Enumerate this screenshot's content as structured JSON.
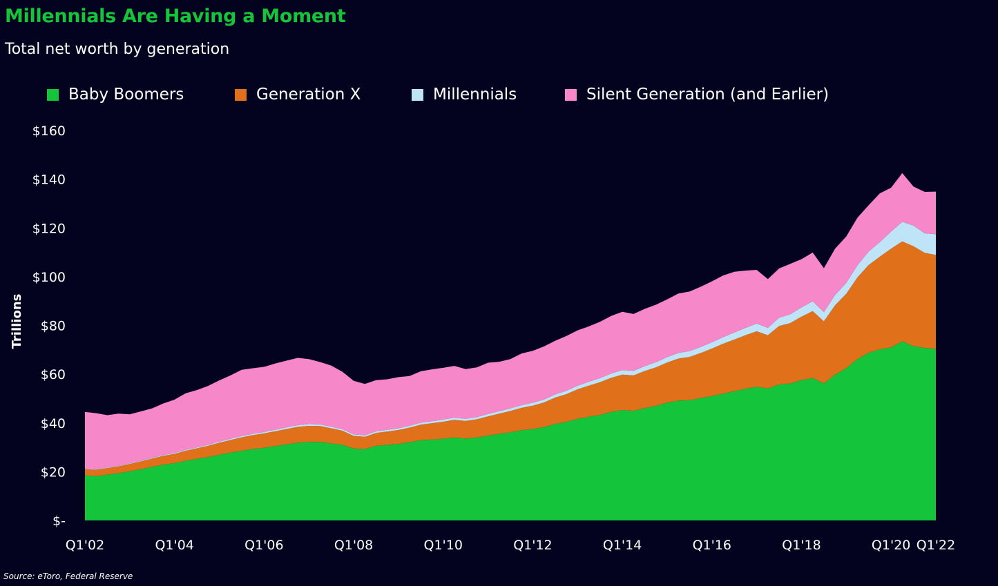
{
  "title": "Millennials Are Having a Moment",
  "subtitle": "Total net worth by generation",
  "source": "Source: eToro, Federal Reserve",
  "colors": {
    "background": "#03031f",
    "baby_boomers": "#14c43a",
    "generation_x": "#e0701a",
    "millennials": "#bfe4f8",
    "silent": "#f687c8"
  },
  "chart_data": {
    "type": "area",
    "stacked": true,
    "title": "Millennials Are Having a Moment",
    "subtitle": "Total net worth by generation",
    "ylabel": "Trillions",
    "xlabel": "",
    "ylim": [
      0,
      160
    ],
    "yticks": [
      0,
      20,
      40,
      60,
      80,
      100,
      120,
      140,
      160
    ],
    "ytick_labels": [
      "$-",
      "$20",
      "$40",
      "$60",
      "$80",
      "$100",
      "$120",
      "$140",
      "$160"
    ],
    "xtick_labels": [
      "Q1'02",
      "Q1'04",
      "Q1'06",
      "Q1'08",
      "Q1'10",
      "Q1'12",
      "Q1'14",
      "Q1'16",
      "Q1'18",
      "Q1'20",
      "Q1'22"
    ],
    "x_start": "Q1'02",
    "x_end": "Q3'22",
    "legend_position": "top",
    "series": [
      {
        "name": "Baby Boomers",
        "color": "#14c43a",
        "values": [
          18.5,
          18.2,
          18.8,
          19.4,
          20.2,
          21.0,
          22.0,
          22.9,
          23.5,
          24.5,
          25.3,
          26.0,
          27.0,
          27.8,
          28.6,
          29.3,
          29.8,
          30.5,
          31.2,
          31.9,
          32.2,
          32.2,
          31.6,
          31.0,
          29.5,
          29.3,
          30.6,
          31.0,
          31.4,
          32.1,
          32.9,
          33.2,
          33.5,
          34.0,
          33.6,
          34.0,
          34.8,
          35.5,
          36.2,
          37.0,
          37.5,
          38.3,
          39.6,
          40.4,
          41.7,
          42.5,
          43.3,
          44.5,
          45.3,
          45.0,
          46.1,
          47.0,
          48.3,
          49.2,
          49.3,
          50.2,
          51.0,
          52.0,
          53.0,
          54.0,
          54.8,
          54.2,
          55.8,
          56.2,
          57.6,
          58.4,
          56.2,
          59.8,
          62.5,
          66.2,
          68.8,
          70.2,
          71.0,
          73.5,
          71.5,
          70.8,
          70.4
        ]
      },
      {
        "name": "Generation X",
        "color": "#e0701a",
        "values": [
          2.5,
          2.6,
          2.7,
          2.8,
          3.0,
          3.2,
          3.4,
          3.6,
          3.8,
          4.1,
          4.3,
          4.6,
          4.9,
          5.2,
          5.5,
          5.7,
          5.9,
          6.1,
          6.3,
          6.5,
          6.6,
          6.5,
          6.2,
          5.8,
          5.2,
          5.0,
          5.3,
          5.5,
          5.7,
          6.0,
          6.4,
          6.7,
          7.0,
          7.3,
          7.2,
          7.5,
          7.9,
          8.3,
          8.7,
          9.2,
          9.6,
          10.1,
          10.8,
          11.4,
          12.1,
          12.8,
          13.4,
          14.0,
          14.5,
          14.5,
          15.2,
          15.8,
          16.5,
          17.2,
          17.8,
          18.5,
          19.5,
          20.5,
          21.2,
          22.0,
          22.8,
          21.8,
          24.0,
          24.8,
          26.0,
          27.5,
          25.5,
          28.5,
          30.5,
          33.5,
          36.0,
          38.0,
          40.5,
          41.0,
          41.0,
          39.0,
          38.5
        ]
      },
      {
        "name": "Millennials",
        "color": "#bfe4f8",
        "values": [
          0.2,
          0.2,
          0.2,
          0.2,
          0.25,
          0.25,
          0.3,
          0.3,
          0.35,
          0.35,
          0.4,
          0.4,
          0.45,
          0.5,
          0.5,
          0.55,
          0.6,
          0.6,
          0.65,
          0.7,
          0.7,
          0.7,
          0.65,
          0.6,
          0.6,
          0.6,
          0.65,
          0.7,
          0.7,
          0.75,
          0.8,
          0.8,
          0.9,
          0.9,
          0.9,
          0.9,
          1.0,
          1.0,
          1.1,
          1.1,
          1.2,
          1.2,
          1.3,
          1.4,
          1.5,
          1.6,
          1.7,
          1.8,
          1.9,
          1.9,
          2.0,
          2.1,
          2.2,
          2.3,
          2.4,
          2.5,
          2.6,
          2.7,
          2.9,
          3.0,
          3.2,
          3.0,
          3.4,
          3.6,
          3.8,
          4.0,
          3.8,
          4.2,
          4.5,
          5.0,
          5.5,
          6.0,
          7.0,
          8.0,
          8.5,
          8.0,
          8.5
        ]
      },
      {
        "name": "Silent Generation (and Earlier)",
        "color": "#f687c8",
        "values": [
          23.3,
          23.0,
          21.5,
          21.4,
          20.1,
          20.3,
          20.3,
          21.2,
          21.9,
          23.2,
          23.5,
          24.2,
          25.1,
          26.0,
          27.2,
          26.9,
          26.7,
          27.2,
          27.4,
          27.6,
          26.7,
          25.6,
          25.1,
          23.6,
          22.0,
          21.1,
          21.0,
          20.7,
          21.0,
          20.4,
          21.1,
          21.3,
          21.2,
          21.2,
          20.4,
          20.4,
          21.0,
          20.3,
          20.2,
          21.2,
          21.3,
          21.8,
          22.0,
          22.5,
          22.7,
          22.7,
          23.1,
          23.6,
          23.9,
          23.3,
          23.5,
          23.6,
          23.7,
          24.4,
          24.4,
          24.7,
          25.0,
          25.3,
          24.9,
          23.5,
          22.0,
          20.0,
          20.2,
          20.7,
          19.8,
          20.0,
          18.0,
          19.0,
          19.0,
          19.5,
          19.0,
          20.0,
          18.0,
          20.0,
          16.0,
          17.0,
          17.5
        ]
      }
    ]
  }
}
